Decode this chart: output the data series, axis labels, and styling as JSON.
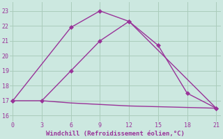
{
  "line1_x": [
    0,
    6,
    9,
    12,
    21
  ],
  "line1_y": [
    17,
    21.9,
    23,
    22.3,
    16.5
  ],
  "line2_x": [
    0,
    3,
    6,
    9,
    12,
    15,
    18,
    21
  ],
  "line2_y": [
    17,
    17,
    19.0,
    21.0,
    22.3,
    20.7,
    17.5,
    16.5
  ],
  "line3_x": [
    3,
    6,
    9,
    12,
    15,
    18,
    21
  ],
  "line3_y": [
    17.0,
    16.85,
    16.75,
    16.65,
    16.6,
    16.55,
    16.5
  ],
  "line_color": "#993399",
  "bg_color": "#cce8e0",
  "grid_color": "#aaccbb",
  "xlabel": "Windchill (Refroidissement éolien,°C)",
  "xlabel_color": "#993399",
  "xticks": [
    0,
    3,
    6,
    9,
    12,
    15,
    18,
    21
  ],
  "yticks": [
    16,
    17,
    18,
    19,
    20,
    21,
    22,
    23
  ],
  "xlim": [
    -0.3,
    21.5
  ],
  "ylim": [
    15.6,
    23.6
  ],
  "tick_color": "#993399",
  "marker": "D",
  "markersize": 3
}
